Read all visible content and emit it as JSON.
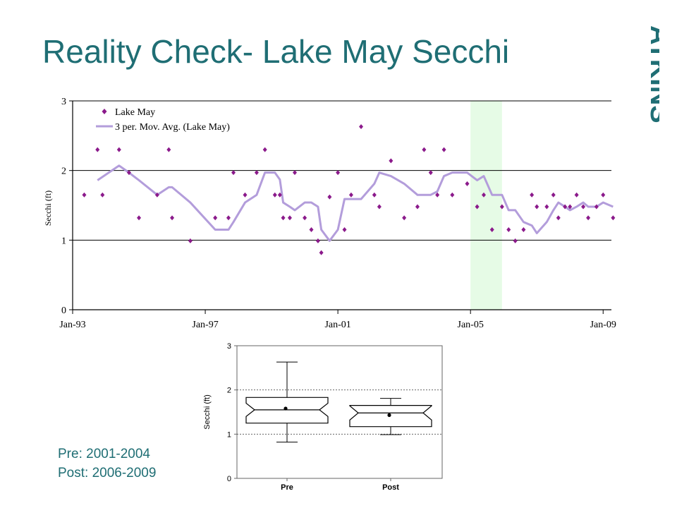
{
  "slide": {
    "title": "Reality Check- Lake May Secchi",
    "logo_text": "ATKINS",
    "notes": [
      "Pre: 2001-2004",
      "Post: 2006-2009"
    ]
  },
  "chart_data": [
    {
      "type": "scatter",
      "ylabel": "Secchi (ft)",
      "ylim": [
        0,
        3
      ],
      "yticks": [
        0,
        1,
        2,
        3
      ],
      "xlim": [
        1993.0,
        2009.25
      ],
      "xticks": [
        {
          "x": 1993.0,
          "label": "Jan-93"
        },
        {
          "x": 1997.0,
          "label": "Jan-97"
        },
        {
          "x": 2001.0,
          "label": "Jan-01"
        },
        {
          "x": 2005.0,
          "label": "Jan-05"
        },
        {
          "x": 2009.0,
          "label": "Jan-09"
        }
      ],
      "grid": "horizontal",
      "legend_position": "top-left",
      "highlight_band": {
        "x_start": 2005.0,
        "x_end": 2005.95,
        "color": "#e6fbe6"
      },
      "series": [
        {
          "name": "Lake May",
          "marker": "diamond",
          "color": "#8b1a8b",
          "x": [
            1993.35,
            1993.75,
            1993.9,
            1994.4,
            1994.7,
            1995.0,
            1995.55,
            1995.9,
            1996.0,
            1996.55,
            1997.3,
            1997.7,
            1997.85,
            1998.2,
            1998.55,
            1998.8,
            1999.1,
            1999.25,
            1999.35,
            1999.55,
            1999.7,
            2000.0,
            2000.2,
            2000.4,
            2000.5,
            2000.75,
            2001.0,
            2001.2,
            2001.4,
            2001.7,
            2002.1,
            2002.25,
            2002.6,
            2003.0,
            2003.4,
            2003.6,
            2003.8,
            2004.0,
            2004.2,
            2004.45,
            2004.9,
            2005.2,
            2005.4,
            2005.65,
            2005.95,
            2006.15,
            2006.35,
            2006.6,
            2006.85,
            2007.0,
            2007.3,
            2007.5,
            2007.65,
            2007.85,
            2008.0,
            2008.2,
            2008.4,
            2008.55,
            2008.8,
            2009.0,
            2009.3
          ],
          "y": [
            1.65,
            2.3,
            1.65,
            2.3,
            1.97,
            1.32,
            1.65,
            2.3,
            1.32,
            0.99,
            1.32,
            1.32,
            1.97,
            1.65,
            1.97,
            2.3,
            1.65,
            1.65,
            1.32,
            1.32,
            1.97,
            1.32,
            1.15,
            0.99,
            0.82,
            1.62,
            1.97,
            1.15,
            1.65,
            2.63,
            1.65,
            1.48,
            2.14,
            1.32,
            1.48,
            2.3,
            1.97,
            1.65,
            2.3,
            1.65,
            1.81,
            1.48,
            1.65,
            1.15,
            1.48,
            1.15,
            0.99,
            1.15,
            1.65,
            1.48,
            1.48,
            1.65,
            1.32,
            1.48,
            1.48,
            1.65,
            1.48,
            1.32,
            1.48,
            1.65,
            1.32
          ]
        },
        {
          "name": "3 per. Mov. Avg. (Lake May)",
          "line": true,
          "color": "#b39ddb",
          "x": [
            1993.75,
            1994.4,
            1994.7,
            1995.0,
            1995.55,
            1995.9,
            1996.0,
            1996.55,
            1997.3,
            1997.7,
            1997.85,
            1998.2,
            1998.55,
            1998.8,
            1999.1,
            1999.25,
            1999.35,
            1999.55,
            1999.7,
            2000.0,
            2000.2,
            2000.4,
            2000.5,
            2000.75,
            2001.0,
            2001.2,
            2001.4,
            2001.7,
            2002.1,
            2002.25,
            2002.6,
            2003.0,
            2003.4,
            2003.6,
            2003.8,
            2004.0,
            2004.2,
            2004.45,
            2004.9,
            2005.2,
            2005.4,
            2005.65,
            2005.95,
            2006.15,
            2006.35,
            2006.6,
            2006.85,
            2007.0,
            2007.3,
            2007.5,
            2007.65,
            2007.85,
            2008.0,
            2008.2,
            2008.4,
            2008.55,
            2008.8,
            2009.0,
            2009.3
          ],
          "y": [
            1.86,
            2.07,
            1.97,
            1.86,
            1.65,
            1.76,
            1.76,
            1.54,
            1.15,
            1.15,
            1.26,
            1.54,
            1.65,
            1.97,
            1.97,
            1.87,
            1.54,
            1.48,
            1.43,
            1.54,
            1.54,
            1.48,
            1.15,
            0.99,
            1.15,
            1.59,
            1.59,
            1.59,
            1.81,
            1.97,
            1.92,
            1.81,
            1.65,
            1.65,
            1.65,
            1.7,
            1.92,
            1.97,
            1.97,
            1.86,
            1.92,
            1.65,
            1.65,
            1.43,
            1.43,
            1.26,
            1.21,
            1.1,
            1.26,
            1.43,
            1.54,
            1.48,
            1.43,
            1.48,
            1.54,
            1.48,
            1.48,
            1.54,
            1.48
          ]
        }
      ]
    },
    {
      "type": "box",
      "ylabel": "Secchi (ft)",
      "ylim": [
        0,
        3
      ],
      "yticks": [
        0,
        1,
        2,
        3
      ],
      "grid": "dotted at 1 and 2",
      "categories": [
        "Pre",
        "Post"
      ],
      "boxes": [
        {
          "label": "Pre",
          "whisker_low": 0.82,
          "q1": 1.25,
          "median": 1.55,
          "q3": 1.83,
          "whisker_high": 2.63,
          "mean": 1.58,
          "notch_low": 1.4,
          "notch_high": 1.7
        },
        {
          "label": "Post",
          "whisker_low": 0.99,
          "q1": 1.17,
          "median": 1.48,
          "q3": 1.65,
          "whisker_high": 1.81,
          "mean": 1.43,
          "notch_low": 1.32,
          "notch_high": 1.64
        }
      ]
    }
  ]
}
